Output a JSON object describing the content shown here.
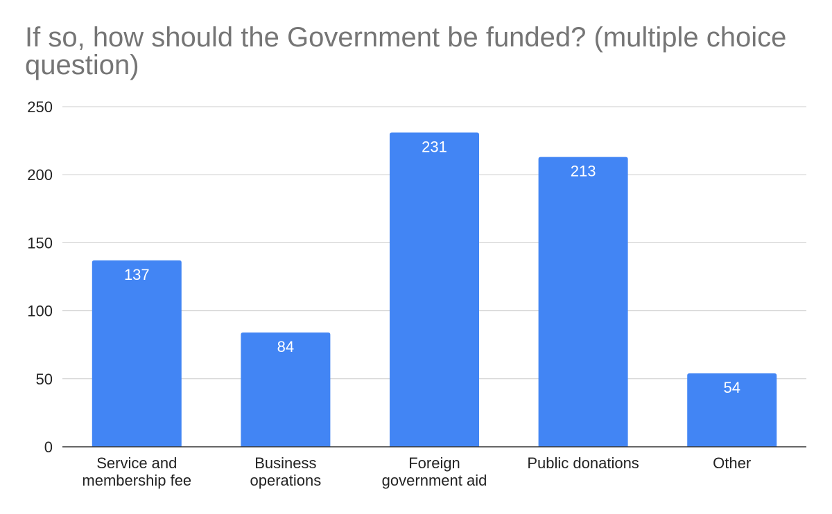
{
  "chart_data": {
    "type": "bar",
    "title": " If so, how should the Government be funded? (multiple choice question)",
    "categories": [
      [
        "Service and",
        "membership fee"
      ],
      [
        "Business",
        "operations"
      ],
      [
        "Foreign",
        "government aid"
      ],
      [
        "Public donations"
      ],
      [
        "Other"
      ]
    ],
    "values": [
      137,
      84,
      231,
      213,
      54
    ],
    "ylim": [
      0,
      250
    ],
    "yticks": [
      0,
      50,
      100,
      150,
      200,
      250
    ],
    "grid": true,
    "legend": "none",
    "colors": {
      "bar": "#4285f4",
      "grid": "#cccccc",
      "axis": "#333333",
      "title": "#757575",
      "data_label": "#ffffff"
    }
  }
}
